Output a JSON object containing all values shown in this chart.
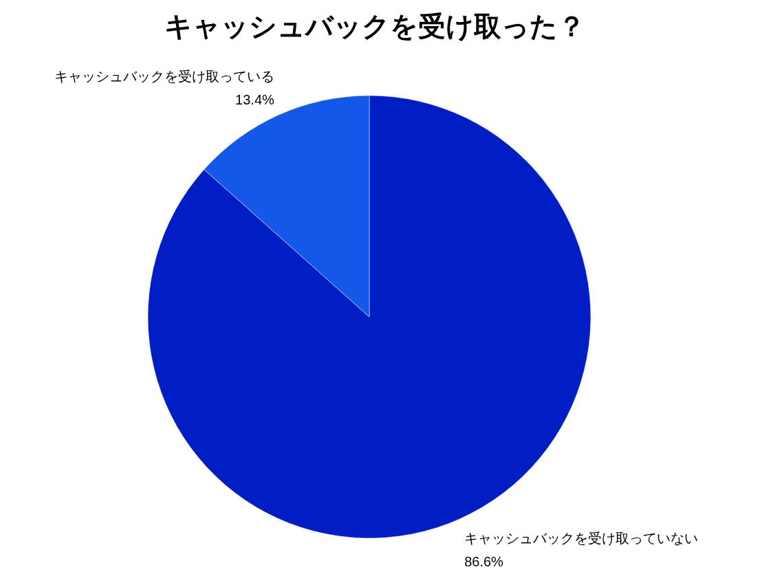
{
  "chart_data": {
    "type": "pie",
    "title": "キャッシュバックを受け取った？",
    "categories": [
      "キャッシュバックを受け取っていない",
      "キャッシュバックを受け取っている"
    ],
    "values": [
      86.6,
      13.4
    ],
    "value_labels": [
      "86.6%",
      "13.4%"
    ],
    "colors": [
      "#001ec4",
      "#1358e8"
    ]
  }
}
